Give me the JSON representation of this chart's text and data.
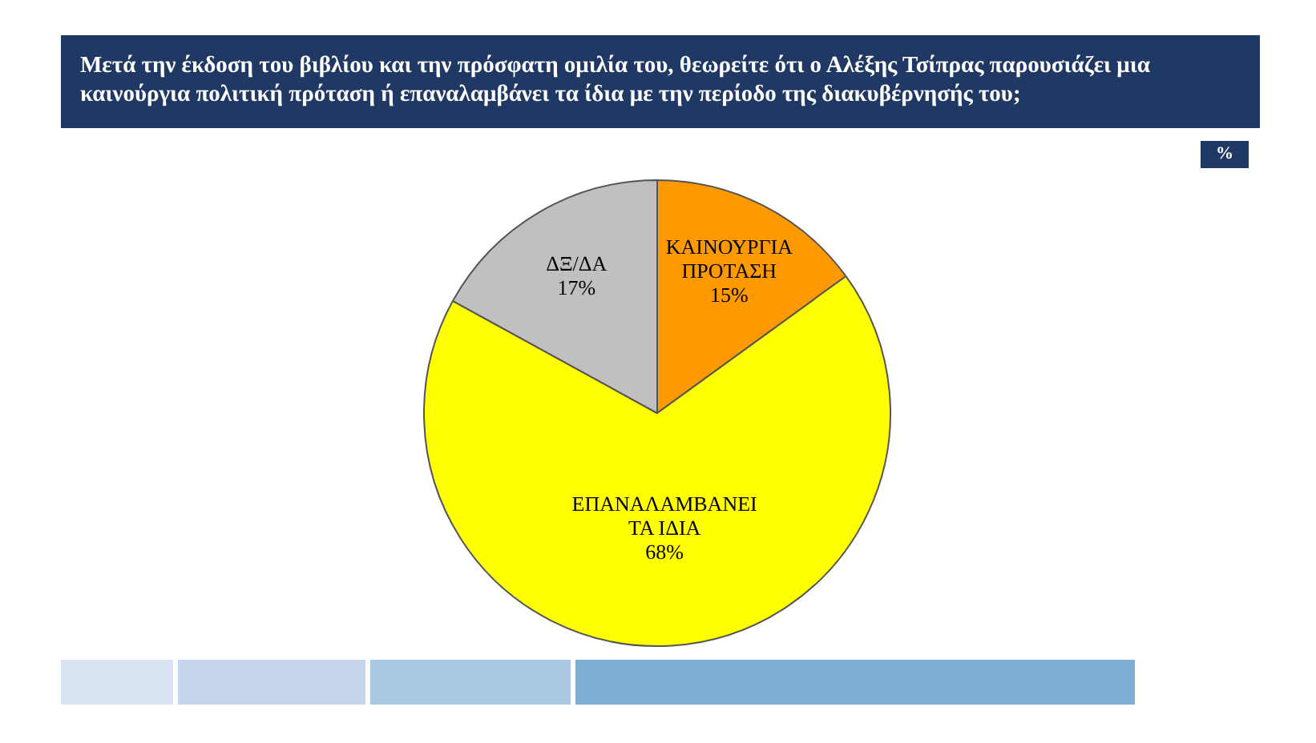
{
  "chart_data": {
    "type": "pie",
    "title": "Μετά την έκδοση του βιβλίου και την πρόσφατη ομιλία του, θεωρείτε ότι ο Αλέξης Τσίπρας παρουσιάζει μια καινούργια πολιτική πρόταση ή επαναλαμβάνει τα ίδια με την περίοδο της διακυβέρνησής του;",
    "subtitle": "%",
    "categories": [
      "ΚΑΙΝΟΥΡΓΙΑ ΠΡΟΤΑΣΗ",
      "ΕΠΑΝΑΛΑΜΒΑΝΕΙ ΤΑ ΙΔΙΑ",
      "ΔΞ/ΔΑ"
    ],
    "values": [
      15,
      68,
      17
    ],
    "value_labels": [
      "15%",
      "68%",
      "17%"
    ],
    "colors": [
      "#ff9900",
      "#ffff00",
      "#c0c0c0"
    ],
    "legend": false
  }
}
